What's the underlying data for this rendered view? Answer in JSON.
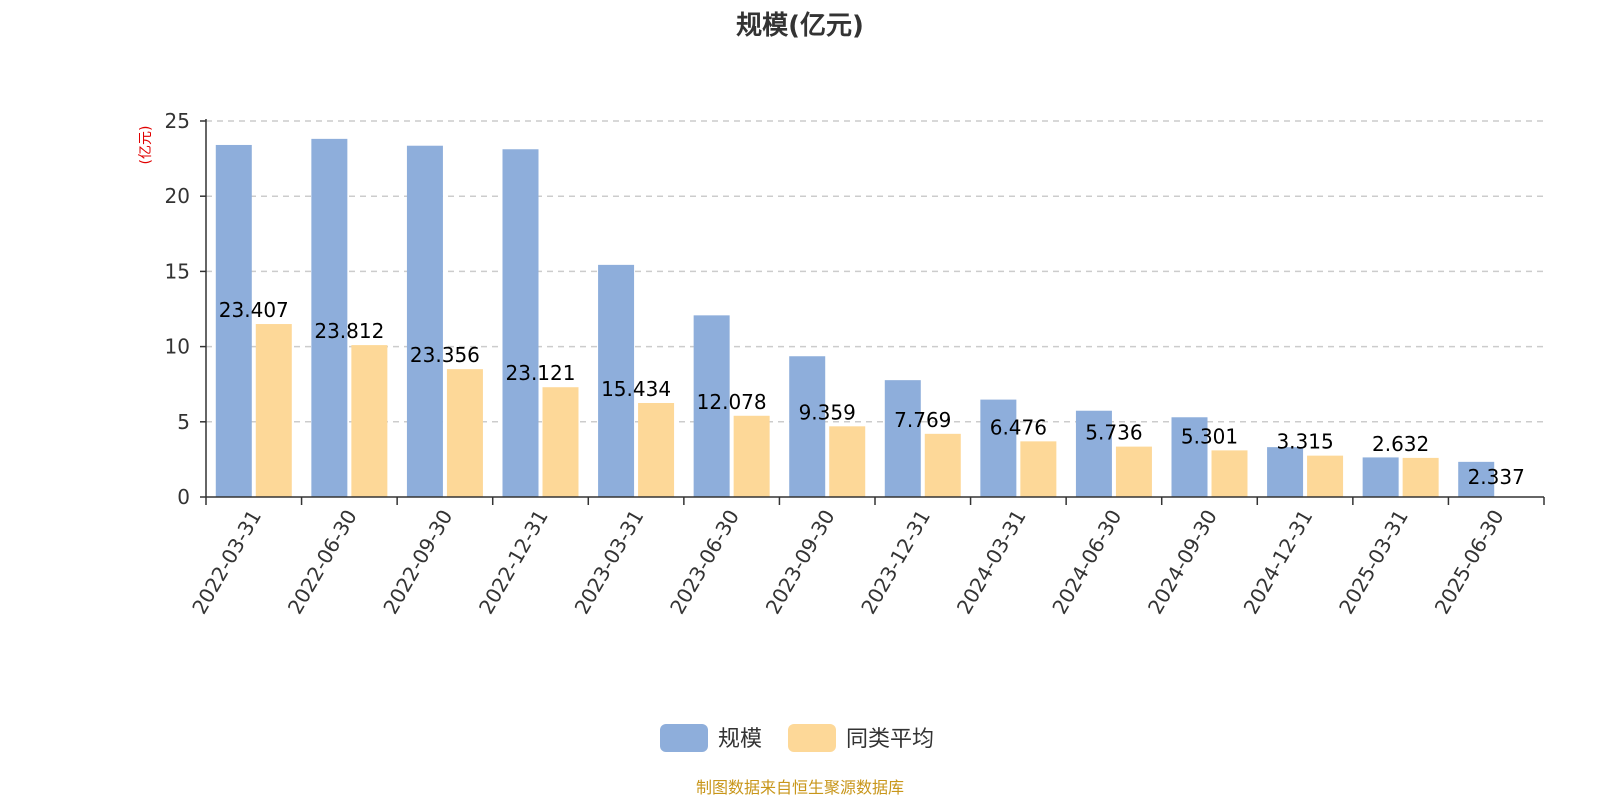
{
  "chart_data": {
    "type": "bar",
    "title": "规模(亿元)",
    "ylabel": "(亿元)",
    "ylim": [
      0,
      25
    ],
    "yticks": [
      0,
      5,
      10,
      15,
      20,
      25
    ],
    "grid": true,
    "legend_position": "bottom-center",
    "categories": [
      "2022-03-31",
      "2022-06-30",
      "2022-09-30",
      "2022-12-31",
      "2023-03-31",
      "2023-06-30",
      "2023-09-30",
      "2023-12-31",
      "2024-03-31",
      "2024-06-30",
      "2024-09-30",
      "2024-12-31",
      "2025-03-31",
      "2025-06-30"
    ],
    "series": [
      {
        "name": "规模",
        "color": "#8eaedb",
        "values": [
          23.407,
          23.812,
          23.356,
          23.121,
          15.434,
          12.078,
          9.359,
          7.769,
          6.476,
          5.736,
          5.301,
          3.315,
          2.632,
          2.337
        ],
        "labels": [
          "23.407",
          "23.812",
          "23.356",
          "23.121",
          "15.434",
          "12.078",
          "9.359",
          "7.769",
          "6.476",
          "5.736",
          "5.301",
          "3.315",
          "2.632",
          "2.337"
        ]
      },
      {
        "name": "同类平均",
        "color": "#fdd898",
        "values": [
          11.5,
          10.1,
          8.5,
          7.3,
          6.25,
          5.4,
          4.7,
          4.2,
          3.7,
          3.35,
          3.1,
          2.75,
          2.6,
          null
        ]
      }
    ]
  },
  "source_text": "制图数据来自恒生聚源数据库"
}
